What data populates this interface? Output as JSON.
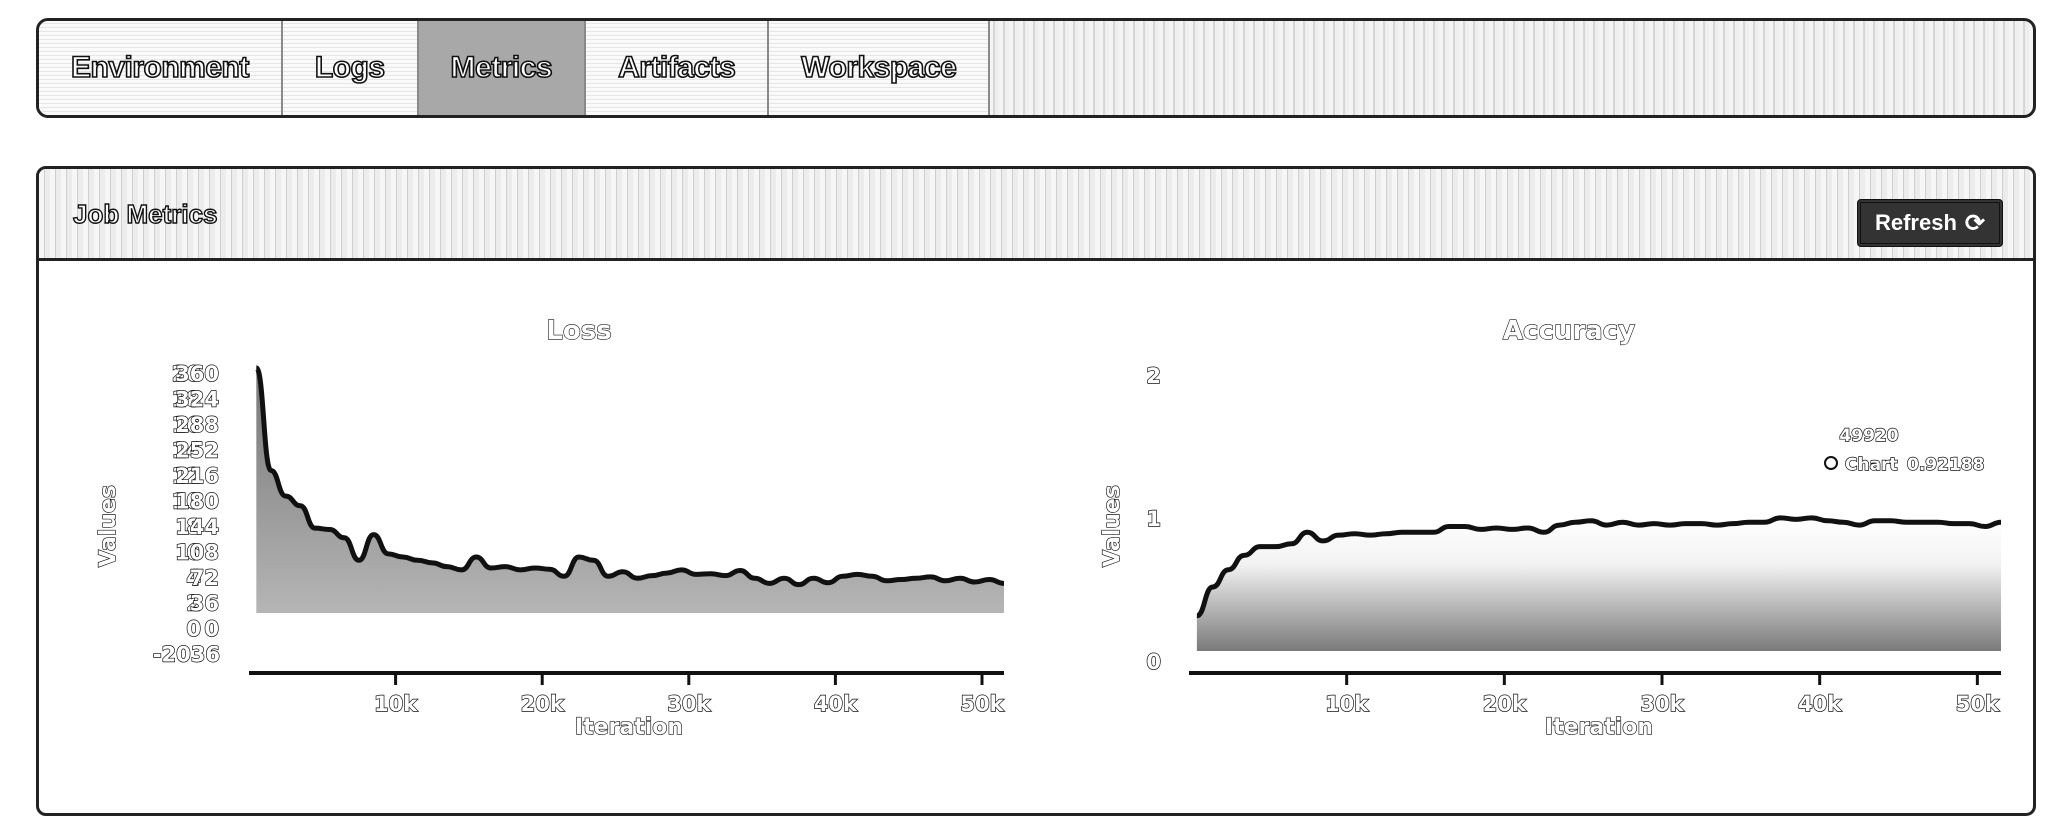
{
  "tabs": [
    {
      "label": "Environment",
      "active": false
    },
    {
      "label": "Logs",
      "active": false
    },
    {
      "label": "Metrics",
      "active": true
    },
    {
      "label": "Artifacts",
      "active": false
    },
    {
      "label": "Workspace",
      "active": false
    }
  ],
  "panel": {
    "title": "Job Metrics",
    "refresh_label": "Refresh",
    "refresh_icon": "refresh-icon"
  },
  "chart_data": [
    {
      "type": "area",
      "title": "Loss",
      "xlabel": "Iteration",
      "ylabel": "Values",
      "xlim": [
        0,
        51500
      ],
      "x_ticks": [
        "10k",
        "20k",
        "30k",
        "40k",
        "50k"
      ],
      "y_ticks_left": [
        "20",
        "18",
        "16",
        "14",
        "12",
        "10",
        "8",
        "6",
        "4",
        "2",
        "0"
      ],
      "y_ticks_right": [
        "360",
        "324",
        "288",
        "252",
        "216",
        "180",
        "144",
        "108",
        "72",
        "36",
        "0",
        "-2036"
      ],
      "ylim": [
        -36,
        360
      ],
      "series": [
        {
          "x": [
            500,
            1500,
            2500,
            3500,
            4500,
            5500,
            6500,
            7500,
            8500,
            9500,
            10500,
            11500,
            12500,
            13500,
            14500,
            15500,
            16500,
            17500,
            18500,
            19500,
            20500,
            21500,
            22500,
            23500,
            24500,
            25500,
            26500,
            27500,
            28500,
            29500,
            30500,
            31500,
            32500,
            33500,
            34500,
            35500,
            36500,
            37500,
            38500,
            39500,
            40500,
            41500,
            42500,
            43500,
            44500,
            45500,
            46500,
            47500,
            48500,
            49500,
            50500,
            51500
          ],
          "values": [
            340,
            180,
            140,
            125,
            90,
            88,
            75,
            40,
            80,
            50,
            45,
            40,
            36,
            30,
            25,
            45,
            28,
            30,
            25,
            28,
            26,
            15,
            45,
            40,
            15,
            22,
            12,
            16,
            20,
            25,
            18,
            19,
            16,
            24,
            12,
            4,
            12,
            2,
            12,
            5,
            15,
            18,
            15,
            8,
            10,
            12,
            14,
            8,
            12,
            6,
            10,
            4
          ]
        }
      ]
    },
    {
      "type": "area",
      "title": "Accuracy",
      "xlabel": "Iteration",
      "ylabel": "Values",
      "xlim": [
        0,
        51500
      ],
      "ylim": [
        0,
        2
      ],
      "x_ticks": [
        "10k",
        "20k",
        "30k",
        "40k",
        "50k"
      ],
      "y_ticks": [
        "2",
        "1",
        "0"
      ],
      "legend": "top-right",
      "tooltip": {
        "x": "49920",
        "series": "Chart",
        "value": "0.92188"
      },
      "series": [
        {
          "name": "Chart",
          "x": [
            500,
            1500,
            2500,
            3500,
            4500,
            5500,
            6500,
            7500,
            8500,
            9500,
            10500,
            11500,
            12500,
            13500,
            14500,
            15500,
            16500,
            17500,
            18500,
            19500,
            20500,
            21500,
            22500,
            23500,
            24500,
            25500,
            26500,
            27500,
            28500,
            29500,
            30500,
            31500,
            32500,
            33500,
            34500,
            35500,
            36500,
            37500,
            38500,
            39500,
            40500,
            41500,
            42500,
            43500,
            44500,
            45500,
            46500,
            47500,
            48500,
            49500,
            50500,
            51500
          ],
          "values": [
            0.3,
            0.5,
            0.62,
            0.72,
            0.78,
            0.78,
            0.8,
            0.88,
            0.82,
            0.86,
            0.87,
            0.86,
            0.87,
            0.88,
            0.88,
            0.88,
            0.92,
            0.92,
            0.9,
            0.91,
            0.9,
            0.91,
            0.88,
            0.93,
            0.95,
            0.96,
            0.93,
            0.95,
            0.93,
            0.94,
            0.93,
            0.94,
            0.94,
            0.93,
            0.94,
            0.95,
            0.95,
            0.98,
            0.97,
            0.98,
            0.96,
            0.95,
            0.93,
            0.96,
            0.96,
            0.95,
            0.95,
            0.95,
            0.94,
            0.94,
            0.92,
            0.95
          ]
        }
      ]
    }
  ]
}
